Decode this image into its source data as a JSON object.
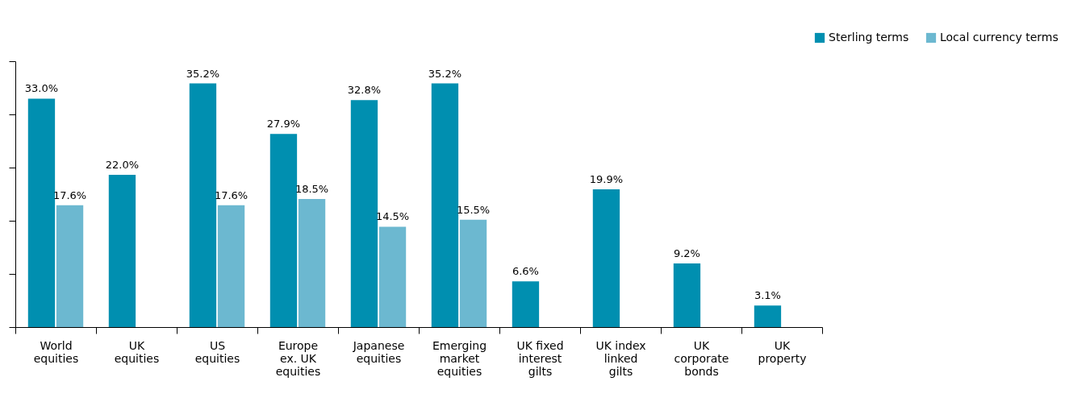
{
  "chart_data": {
    "type": "bar",
    "categories": [
      "World\nequities",
      "UK\nequities",
      "US\nequities",
      "Europe\nex. UK\nequities",
      "Japanese\nequities",
      "Emerging\nmarket\nequities",
      "UK fixed\ninterest\ngilts",
      "UK index\nlinked\ngilts",
      "UK\ncorporate\nbonds",
      "UK\nproperty"
    ],
    "series": [
      {
        "name": "Sterling terms",
        "color": "#008fb0",
        "values": [
          33.0,
          22.0,
          35.2,
          27.9,
          32.8,
          35.2,
          6.6,
          19.9,
          9.2,
          3.1
        ],
        "value_labels": [
          "33.0%",
          "22.0%",
          "35.2%",
          "27.9%",
          "32.8%",
          "35.2%",
          "6.6%",
          "19.9%",
          "9.2%",
          "3.1%"
        ]
      },
      {
        "name": "Local currency terms",
        "color": "#6cb8d0",
        "values": [
          17.6,
          null,
          17.6,
          18.5,
          14.5,
          15.5,
          null,
          null,
          null,
          null
        ],
        "value_labels": [
          "17.6%",
          null,
          "17.6%",
          "18.5%",
          "14.5%",
          "15.5%",
          null,
          null,
          null,
          null
        ]
      }
    ],
    "ylim": [
      0,
      38.4
    ],
    "yticks": [
      {
        "value": 0,
        "label": null
      },
      {
        "value": 7.68,
        "label": null
      },
      {
        "value": 15.36,
        "label": null
      },
      {
        "value": 23.04,
        "label": null
      },
      {
        "value": 30.72,
        "label": null
      },
      {
        "value": 38.4,
        "label": null
      }
    ],
    "grid": false,
    "legend": "top right",
    "tick_labels": "x"
  }
}
